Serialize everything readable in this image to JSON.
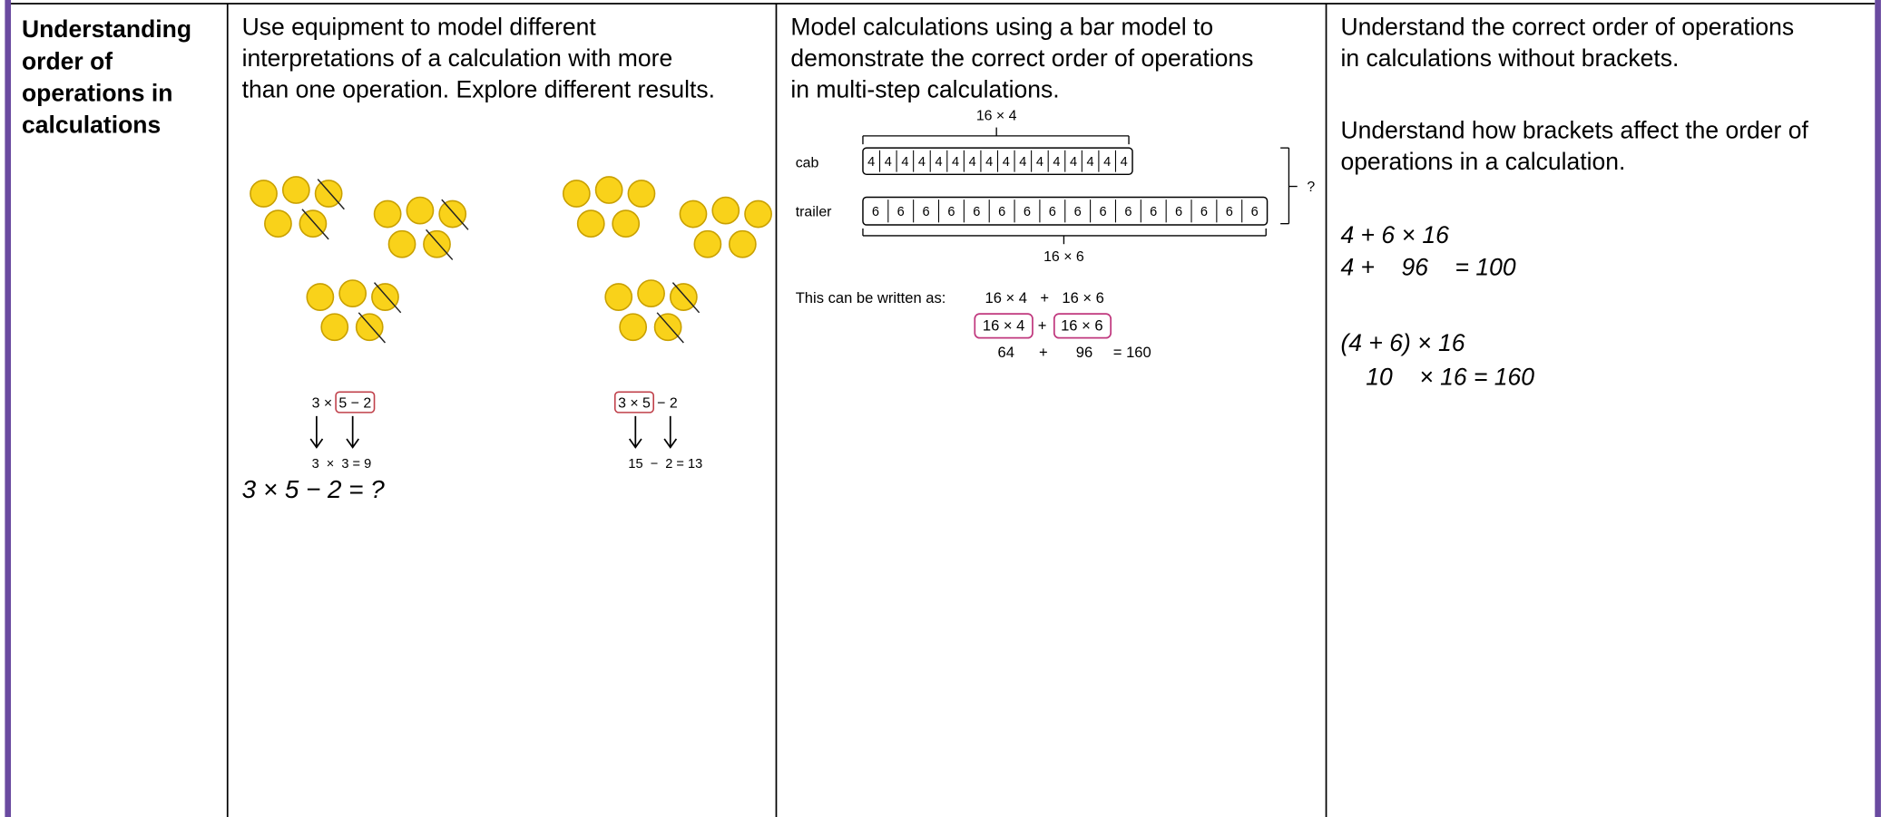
{
  "heading": [
    "Understanding",
    "order of",
    "operations in",
    "calculations"
  ],
  "equipment": {
    "text": [
      "Use equipment to model different",
      "interpretations of a calculation with more",
      "than one operation. Explore different results."
    ],
    "grouped": {
      "expr": "3 ×",
      "boxed": "5 − 2",
      "result": "3  ×  3 = 9"
    },
    "left_to_right": {
      "boxed": "3 × 5",
      "expr": "− 2",
      "result": "15  −  2 = 13"
    },
    "question": "3 × 5 − 2 = ?"
  },
  "bar_model": {
    "text": [
      "Model calculations using a bar model to",
      "demonstrate the correct order of operations",
      "in multi-step calculations."
    ],
    "top_label": "16 × 4",
    "rows": [
      {
        "label": "cab",
        "cells": [
          "4",
          "4",
          "4",
          "4",
          "4",
          "4",
          "4",
          "4",
          "4",
          "4",
          "4",
          "4",
          "4",
          "4",
          "4",
          "4"
        ]
      },
      {
        "label": "trailer",
        "cells": [
          "6",
          "6",
          "6",
          "6",
          "6",
          "6",
          "6",
          "6",
          "6",
          "6",
          "6",
          "6",
          "6",
          "6",
          "6",
          "6"
        ]
      }
    ],
    "total": "?",
    "bottom_label": "16 × 6",
    "written_as": {
      "label": "This can be written as:",
      "line1": [
        "16 × 4",
        "+",
        "16 × 6"
      ],
      "line2": [
        "16 × 4",
        "+",
        "16 × 6"
      ],
      "line3": [
        "64",
        "+",
        "96",
        "= 160"
      ]
    }
  },
  "order": {
    "intro": [
      "Understand the correct order of operations",
      "in calculations without brackets."
    ],
    "brackets": [
      "Understand how brackets affect the order of",
      "operations in a calculation."
    ],
    "example1": [
      "4 + 6 × 16",
      "4 +    96    = 100"
    ],
    "example2": [
      "(4 + 6) × 16",
      "10    × 16 = 160"
    ]
  }
}
